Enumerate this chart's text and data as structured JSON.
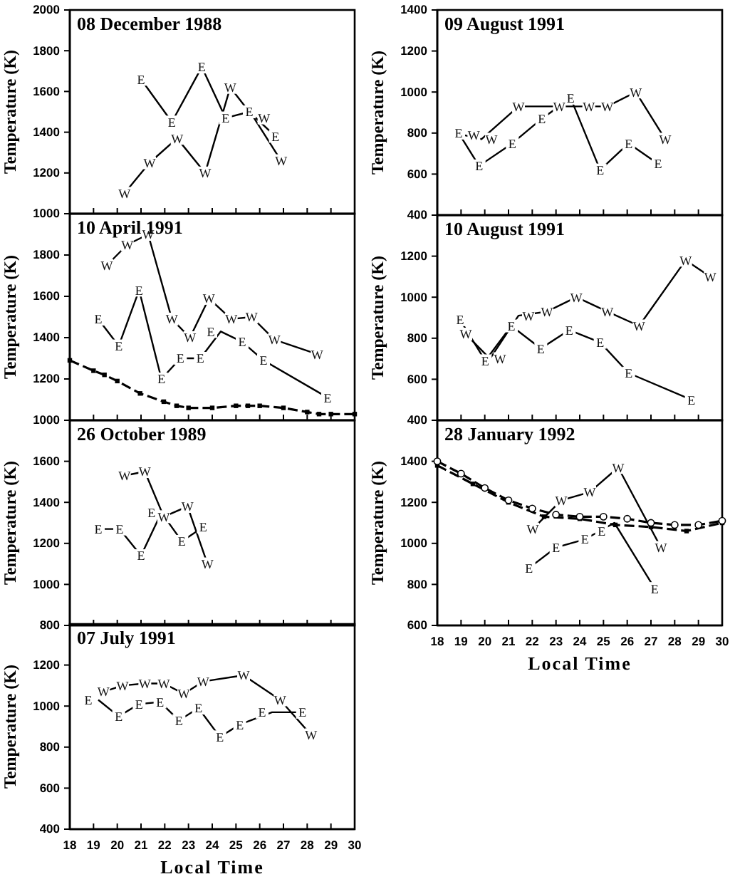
{
  "chart_data": [
    {
      "type": "line",
      "title": "08 December 1988",
      "ylabel": "Temperature (K)",
      "xlim": [
        18,
        30
      ],
      "ylim": [
        1000,
        2000
      ],
      "xticks": [
        18,
        19,
        20,
        21,
        22,
        23,
        24,
        25,
        26,
        27,
        28,
        29,
        30
      ],
      "yticks": [
        1000,
        1200,
        1400,
        1600,
        1800,
        2000
      ],
      "tick_labels": "y",
      "series": [
        {
          "name": "E",
          "color": "#000000",
          "x": [
            21.0,
            22.3,
            23.56,
            24.56,
            25.56,
            26.66
          ],
          "values": [
            1660,
            1450,
            1720,
            1470,
            1500,
            1380
          ]
        },
        {
          "name": "W",
          "color": "#000000",
          "x": [
            20.3,
            21.36,
            22.52,
            23.7,
            24.76,
            25.76,
            26.9
          ],
          "values": [
            1100,
            1250,
            1370,
            1200,
            1620,
            1470,
            1260
          ]
        }
      ]
    },
    {
      "type": "line",
      "title": "09 August 1991",
      "ylabel": "Temperature (K)",
      "xlim": [
        18,
        30
      ],
      "ylim": [
        400,
        1400
      ],
      "xticks": [
        18,
        19,
        20,
        21,
        22,
        23,
        24,
        25,
        26,
        27,
        28,
        29,
        30
      ],
      "yticks": [
        400,
        600,
        800,
        1000,
        1200,
        1400
      ],
      "tick_labels": "y",
      "series": [
        {
          "name": "E",
          "color": "#000000",
          "x": [
            18.9,
            19.76,
            21.16,
            22.4,
            23.62,
            24.86,
            26.06,
            27.3
          ],
          "values": [
            800,
            640,
            750,
            870,
            970,
            620,
            750,
            650
          ]
        },
        {
          "name": "W",
          "color": "#000000",
          "x": [
            19.12,
            19.86,
            21.42,
            22.72,
            23.96,
            25.16,
            26.36,
            27.6
          ],
          "values": [
            790,
            770,
            930,
            930,
            930,
            930,
            1000,
            770
          ]
        }
      ]
    },
    {
      "type": "line",
      "title": "10 April  1991",
      "ylabel": "Temperature (K)",
      "xlim": [
        18,
        30
      ],
      "ylim": [
        1000,
        2000
      ],
      "xticks": [
        18,
        19,
        20,
        21,
        22,
        23,
        24,
        25,
        26,
        27,
        28,
        29,
        30
      ],
      "yticks": [
        1000,
        1200,
        1400,
        1600,
        1800
      ],
      "tick_labels": "y",
      "series": [
        {
          "name": "W",
          "color": "#000000",
          "x": [
            19.56,
            20.42,
            21.3,
            22.3,
            23.06,
            23.86,
            24.8,
            25.66,
            26.62,
            28.42
          ],
          "values": [
            1750,
            1850,
            1900,
            1490,
            1400,
            1590,
            1490,
            1500,
            1390,
            1320
          ]
        },
        {
          "name": "E",
          "color": "#000000",
          "x": [
            19.2,
            20.06,
            20.92,
            21.86,
            22.66,
            23.5,
            24.36,
            25.26,
            26.16,
            28.86
          ],
          "values": [
            1490,
            1360,
            1630,
            1200,
            1300,
            1300,
            1430,
            1380,
            1290,
            1110
          ]
        },
        {
          "color": "#000000",
          "line_style": "dashed",
          "marker": "square",
          "x": [
            18,
            19,
            19.46,
            20,
            20.96,
            21.96,
            22.5,
            23,
            24,
            25,
            25.5,
            26,
            27,
            28,
            28.5,
            29,
            30
          ],
          "values": [
            1290,
            1240,
            1220,
            1190,
            1130,
            1090,
            1070,
            1060,
            1060,
            1070,
            1070,
            1070,
            1060,
            1040,
            1030,
            1030,
            1030
          ]
        }
      ]
    },
    {
      "type": "line",
      "title": "10 August 1991",
      "ylabel": "Temperature (K)",
      "xlim": [
        18,
        30
      ],
      "ylim": [
        400,
        1400
      ],
      "xticks": [
        18,
        19,
        20,
        21,
        22,
        23,
        24,
        25,
        26,
        27,
        28,
        29,
        30
      ],
      "yticks": [
        400,
        600,
        800,
        1000,
        1200
      ],
      "tick_labels": "y",
      "series": [
        {
          "name": "E",
          "color": "#000000",
          "x": [
            18.96,
            20.02,
            21.12,
            22.36,
            23.56,
            24.86,
            26.06,
            28.7
          ],
          "values": [
            890,
            690,
            860,
            750,
            840,
            780,
            630,
            500
          ]
        },
        {
          "name": "W",
          "color": "#000000",
          "x": [
            19.2,
            20.22,
            21.42,
            22.62,
            23.86,
            25.16,
            26.5,
            28.46,
            29.5
          ],
          "values": [
            820,
            700,
            910,
            930,
            1000,
            930,
            860,
            1180,
            1100
          ]
        }
      ]
    },
    {
      "type": "line",
      "title": "26 October 1989",
      "ylabel": "Temperature (K)",
      "xlim": [
        18,
        30
      ],
      "ylim": [
        800,
        1800
      ],
      "xticks": [
        18,
        19,
        20,
        21,
        22,
        23,
        24,
        25,
        26,
        27,
        28,
        29,
        30
      ],
      "yticks": [
        800,
        1000,
        1200,
        1400,
        1600
      ],
      "tick_labels": "y",
      "series": [
        {
          "name": "W",
          "color": "#000000",
          "x": [
            20.3,
            21.16,
            21.96,
            22.96,
            23.8
          ],
          "values": [
            1530,
            1550,
            1330,
            1380,
            1100
          ]
        },
        {
          "name": "E",
          "color": "#000000",
          "x": [
            19.2,
            20.1,
            21.0,
            21.86,
            22.72,
            23.62
          ],
          "values": [
            1270,
            1270,
            1140,
            1350,
            1210,
            1280
          ]
        }
      ]
    },
    {
      "type": "line",
      "title": "28 January 1992",
      "ylabel": "Temperature (K)",
      "xlabel": "Local Time",
      "xlim": [
        18,
        30
      ],
      "ylim": [
        600,
        1600
      ],
      "xticks": [
        18,
        19,
        20,
        21,
        22,
        23,
        24,
        25,
        26,
        27,
        28,
        29,
        30
      ],
      "yticks": [
        600,
        800,
        1000,
        1200,
        1400
      ],
      "series": [
        {
          "name": "W",
          "color": "#000000",
          "x": [
            22.02,
            23.22,
            24.42,
            25.62,
            27.42
          ],
          "values": [
            1070,
            1210,
            1250,
            1370,
            980
          ]
        },
        {
          "name": "E",
          "color": "#000000",
          "x": [
            21.86,
            23.0,
            24.22,
            25.46,
            27.16
          ],
          "values": [
            880,
            980,
            1020,
            1100,
            780
          ]
        },
        {
          "color": "#000000",
          "line_style": "dashed",
          "marker": "circle",
          "x": [
            18,
            19,
            20,
            21,
            22,
            23,
            24,
            25,
            26,
            27,
            28,
            29,
            30
          ],
          "values": [
            1400,
            1340,
            1270,
            1210,
            1170,
            1140,
            1130,
            1130,
            1120,
            1100,
            1090,
            1090,
            1110
          ]
        },
        {
          "color": "#000000",
          "line_style": "dashed",
          "marker": "square",
          "x": [
            18,
            19.5,
            21,
            22.5,
            24,
            25.5,
            27,
            28.5,
            30
          ],
          "values": [
            1380,
            1290,
            1200,
            1130,
            1120,
            1090,
            1080,
            1060,
            1100
          ]
        }
      ]
    },
    {
      "type": "line",
      "title": "07 July 1991",
      "ylabel": "Temperature (K)",
      "xlabel": "Local Time",
      "xlim": [
        18,
        30
      ],
      "ylim": [
        400,
        1400
      ],
      "xticks": [
        18,
        19,
        20,
        21,
        22,
        23,
        24,
        25,
        26,
        27,
        28,
        29,
        30
      ],
      "yticks": [
        400,
        600,
        800,
        1000,
        1200
      ],
      "series": [
        {
          "name": "W",
          "color": "#000000",
          "x": [
            19.42,
            20.22,
            21.16,
            21.96,
            22.8,
            23.62,
            25.32,
            26.86,
            28.16
          ],
          "values": [
            1070,
            1100,
            1110,
            1110,
            1060,
            1120,
            1150,
            1030,
            860
          ]
        },
        {
          "name": "E",
          "color": "#000000",
          "x": [
            19.2,
            20.06,
            20.92,
            21.8,
            22.6,
            23.42,
            24.32,
            25.16,
            26.52,
            27.8
          ],
          "values": [
            1030,
            950,
            1010,
            1020,
            930,
            990,
            850,
            910,
            970,
            970
          ]
        }
      ]
    }
  ]
}
